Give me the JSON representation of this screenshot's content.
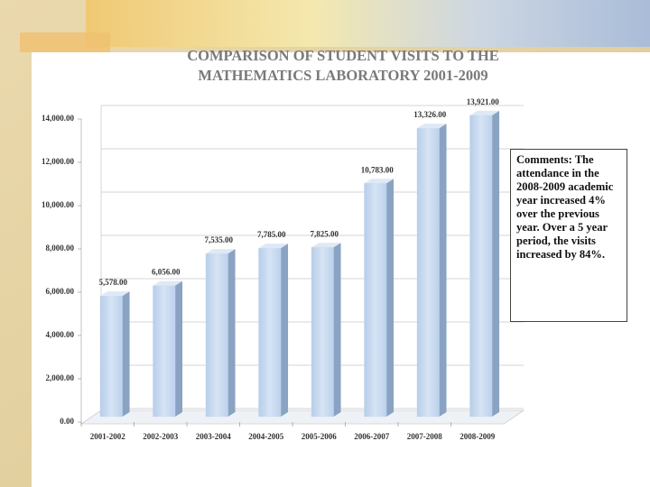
{
  "chart_data": {
    "type": "bar",
    "title": [
      "COMPARISON OF STUDENT VISITS TO THE",
      "MATHEMATICS LABORATORY  2001-2009"
    ],
    "categories": [
      "2001-2002",
      "2002-2003",
      "2003-2004",
      "2004-2005",
      "2005-2006",
      "2006-2007",
      "2007-2008",
      "2008-2009"
    ],
    "values": [
      5578,
      6056,
      7535,
      7785,
      7825,
      10783,
      13326,
      13921
    ],
    "value_labels": [
      "5,578.00",
      "6,056.00",
      "7,535.00",
      "7,785.00",
      "7,825.00",
      "10,783.00",
      "13,326.00",
      "13,921.00"
    ],
    "color": "#c6daf0",
    "ylim": [
      0,
      14000
    ],
    "yticks": [
      {
        "value": 0,
        "label": "0.00"
      },
      {
        "value": 2000,
        "label": "2,000.00"
      },
      {
        "value": 4000,
        "label": "4,000.00"
      },
      {
        "value": 6000,
        "label": "6,000.00"
      },
      {
        "value": 8000,
        "label": "8,000.00"
      },
      {
        "value": 10000,
        "label": "10,000.00"
      },
      {
        "value": 12000,
        "label": "12,000.00"
      },
      {
        "value": 14000,
        "label": "14,000.00"
      }
    ],
    "grid": true,
    "annotation": "Comments: The attendance in the 2008-2009 academic year increased 4% over the previous year. Over a 5 year period, the visits increased by 84%."
  }
}
